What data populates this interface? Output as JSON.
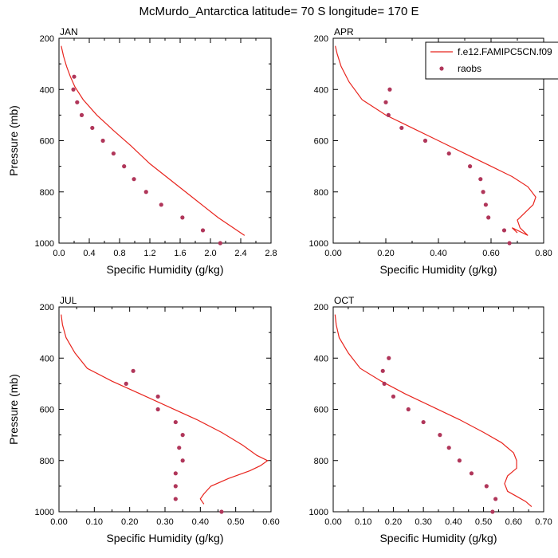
{
  "figure_title": "McMurdo_Antarctica  latitude= 70 S longitude= 170 E",
  "legend": {
    "model_label": "f.e12.FAMIPC5CN.f09",
    "obs_label": "raobs",
    "model_color": "#e8251e",
    "obs_color": "#b0365a"
  },
  "chart_data": [
    {
      "type": "line",
      "title": "JAN",
      "xlabel": "Specific Humidity (g/kg)",
      "ylabel": "Pressure (mb)",
      "xlim": [
        0,
        2.8
      ],
      "ylim": [
        1000,
        200
      ],
      "xticks": [
        0,
        0.4,
        0.8,
        1.2,
        1.6,
        2.0,
        2.4,
        2.8
      ],
      "xtick_labels": [
        "0.0",
        "0.4",
        "0.8",
        "1.2",
        "1.6",
        "2.0",
        "2.4",
        "2.8"
      ],
      "yticks": [
        200,
        400,
        600,
        800,
        1000
      ],
      "ytick_labels": [
        "200",
        "400",
        "600",
        "800",
        "1000"
      ],
      "series": [
        {
          "name": "f.e12.FAMIPC5CN.f09",
          "kind": "line",
          "x": [
            0.03,
            0.06,
            0.1,
            0.15,
            0.21,
            0.32,
            0.5,
            0.72,
            0.95,
            1.2,
            1.5,
            1.8,
            2.1,
            2.45
          ],
          "y": [
            230,
            270,
            310,
            350,
            390,
            440,
            500,
            560,
            620,
            690,
            760,
            830,
            900,
            970
          ]
        },
        {
          "name": "raobs",
          "kind": "scatter",
          "x": [
            0.2,
            0.19,
            0.24,
            0.3,
            0.44,
            0.58,
            0.72,
            0.86,
            0.99,
            1.15,
            1.35,
            1.63,
            1.9,
            2.13
          ],
          "y": [
            350,
            400,
            450,
            500,
            550,
            600,
            650,
            700,
            750,
            800,
            850,
            900,
            950,
            1000
          ]
        }
      ]
    },
    {
      "type": "line",
      "title": "APR",
      "xlabel": "Specific Humidity (g/kg)",
      "ylabel": "",
      "xlim": [
        0,
        0.8
      ],
      "ylim": [
        1000,
        200
      ],
      "xticks": [
        0,
        0.2,
        0.4,
        0.6,
        0.8
      ],
      "xtick_labels": [
        "0.00",
        "0.20",
        "0.40",
        "0.60",
        "0.80"
      ],
      "yticks": [
        200,
        400,
        600,
        800,
        1000
      ],
      "ytick_labels": [
        "200",
        "400",
        "600",
        "800",
        "1000"
      ],
      "series": [
        {
          "name": "f.e12.FAMIPC5CN.f09",
          "kind": "line",
          "x": [
            0.008,
            0.015,
            0.03,
            0.06,
            0.11,
            0.2,
            0.3,
            0.4,
            0.5,
            0.6,
            0.68,
            0.74,
            0.77,
            0.76,
            0.73,
            0.7,
            0.71,
            0.74,
            0.72,
            0.7,
            0.68,
            0.7
          ],
          "y": [
            230,
            260,
            310,
            370,
            440,
            500,
            550,
            600,
            650,
            700,
            740,
            780,
            820,
            850,
            880,
            910,
            940,
            970,
            960,
            950,
            940,
            960
          ]
        },
        {
          "name": "raobs",
          "kind": "scatter",
          "x": [
            0.215,
            0.2,
            0.21,
            0.26,
            0.35,
            0.44,
            0.52,
            0.56,
            0.57,
            0.58,
            0.59,
            0.65,
            0.67
          ],
          "y": [
            400,
            450,
            500,
            550,
            600,
            650,
            700,
            750,
            800,
            850,
            900,
            950,
            1000
          ]
        }
      ]
    },
    {
      "type": "line",
      "title": "JUL",
      "xlabel": "Specific Humidity (g/kg)",
      "ylabel": "Pressure (mb)",
      "xlim": [
        0,
        0.6
      ],
      "ylim": [
        1000,
        200
      ],
      "xticks": [
        0,
        0.1,
        0.2,
        0.3,
        0.4,
        0.5,
        0.6
      ],
      "xtick_labels": [
        "0.00",
        "0.10",
        "0.20",
        "0.30",
        "0.40",
        "0.50",
        "0.60"
      ],
      "yticks": [
        200,
        400,
        600,
        800,
        1000
      ],
      "ytick_labels": [
        "200",
        "400",
        "600",
        "800",
        "1000"
      ],
      "series": [
        {
          "name": "f.e12.FAMIPC5CN.f09",
          "kind": "line",
          "x": [
            0.006,
            0.01,
            0.02,
            0.045,
            0.08,
            0.15,
            0.23,
            0.31,
            0.39,
            0.46,
            0.52,
            0.56,
            0.59,
            0.57,
            0.54,
            0.48,
            0.43,
            0.41,
            0.4,
            0.41
          ],
          "y": [
            230,
            270,
            320,
            380,
            440,
            490,
            540,
            590,
            640,
            690,
            740,
            780,
            800,
            820,
            840,
            870,
            900,
            930,
            950,
            970
          ]
        },
        {
          "name": "raobs",
          "kind": "scatter",
          "x": [
            0.21,
            0.19,
            0.28,
            0.28,
            0.33,
            0.35,
            0.34,
            0.35,
            0.33,
            0.33,
            0.33,
            0.46
          ],
          "y": [
            450,
            500,
            550,
            600,
            650,
            700,
            750,
            800,
            850,
            900,
            950,
            1000
          ]
        }
      ]
    },
    {
      "type": "line",
      "title": "OCT",
      "xlabel": "Specific Humidity (g/kg)",
      "ylabel": "",
      "xlim": [
        0,
        0.7
      ],
      "ylim": [
        1000,
        200
      ],
      "xticks": [
        0,
        0.1,
        0.2,
        0.3,
        0.4,
        0.5,
        0.6,
        0.7
      ],
      "xtick_labels": [
        "0.00",
        "0.10",
        "0.20",
        "0.30",
        "0.40",
        "0.50",
        "0.60",
        "0.70"
      ],
      "yticks": [
        200,
        400,
        600,
        800,
        1000
      ],
      "ytick_labels": [
        "200",
        "400",
        "600",
        "800",
        "1000"
      ],
      "series": [
        {
          "name": "f.e12.FAMIPC5CN.f09",
          "kind": "line",
          "x": [
            0.006,
            0.01,
            0.02,
            0.05,
            0.09,
            0.16,
            0.24,
            0.33,
            0.42,
            0.5,
            0.56,
            0.6,
            0.61,
            0.61,
            0.58,
            0.57,
            0.58,
            0.61,
            0.64,
            0.66
          ],
          "y": [
            230,
            270,
            320,
            380,
            440,
            490,
            540,
            590,
            640,
            690,
            730,
            770,
            800,
            830,
            860,
            890,
            920,
            940,
            960,
            980
          ]
        },
        {
          "name": "raobs",
          "kind": "scatter",
          "x": [
            0.185,
            0.165,
            0.17,
            0.2,
            0.25,
            0.3,
            0.355,
            0.385,
            0.42,
            0.46,
            0.51,
            0.54,
            0.53
          ],
          "y": [
            400,
            450,
            500,
            550,
            600,
            650,
            700,
            750,
            800,
            850,
            900,
            950,
            1000
          ]
        }
      ]
    }
  ]
}
